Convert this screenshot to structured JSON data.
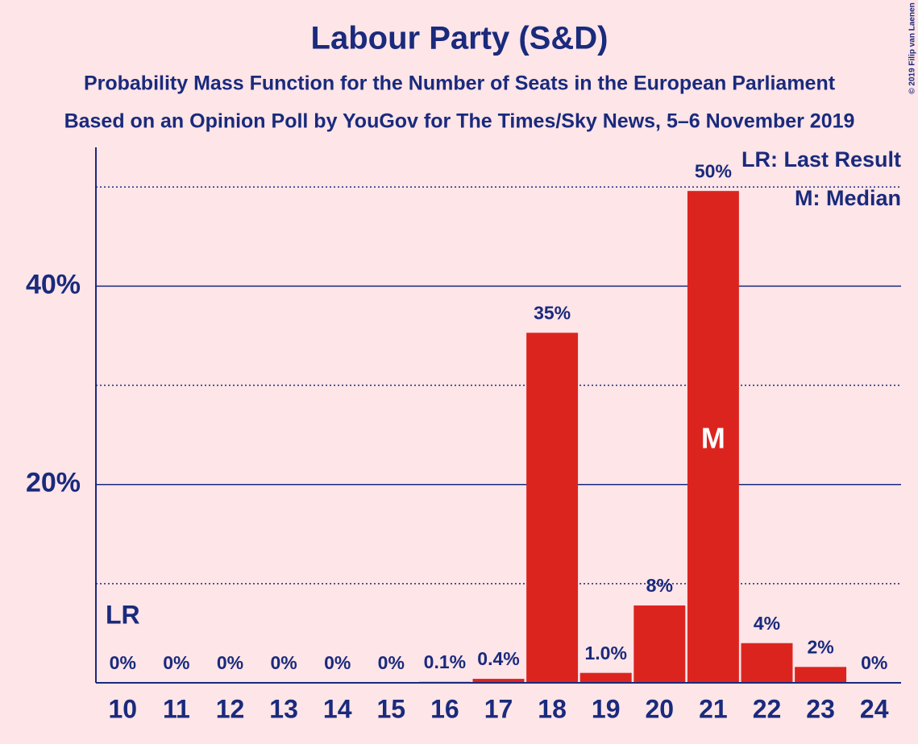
{
  "chart_data": {
    "type": "bar",
    "title": "Labour Party (S&D)",
    "subtitle": "Probability Mass Function for the Number of Seats in the European Parliament",
    "subtitle2": "Based on an Opinion Poll by YouGov for The Times/Sky News, 5–6 November 2019",
    "copyright": "© 2019 Filip van Laenen",
    "categories": [
      "10",
      "11",
      "12",
      "13",
      "14",
      "15",
      "16",
      "17",
      "18",
      "19",
      "20",
      "21",
      "22",
      "23",
      "24"
    ],
    "values": [
      0,
      0,
      0,
      0,
      0,
      0,
      0.1,
      0.4,
      35.3,
      1.0,
      7.8,
      49.6,
      4.0,
      1.6,
      0
    ],
    "value_labels": [
      "0%",
      "0%",
      "0%",
      "0%",
      "0%",
      "0%",
      "0.1%",
      "0.4%",
      "35%",
      "1.0%",
      "8%",
      "50%",
      "4%",
      "2%",
      "0%"
    ],
    "color": "#dc241f",
    "ylim": [
      0,
      54
    ],
    "yticks": [
      {
        "value": 20,
        "label": "20%"
      },
      {
        "value": 40,
        "label": "40%"
      }
    ],
    "minor_yticks": [
      10,
      30,
      50
    ],
    "grid": true,
    "last_result": {
      "label": "LR",
      "category": "10"
    },
    "median": {
      "label": "M",
      "category": "21"
    },
    "legend": [
      "LR: Last Result",
      "M: Median"
    ],
    "legend_position": "top-right"
  }
}
